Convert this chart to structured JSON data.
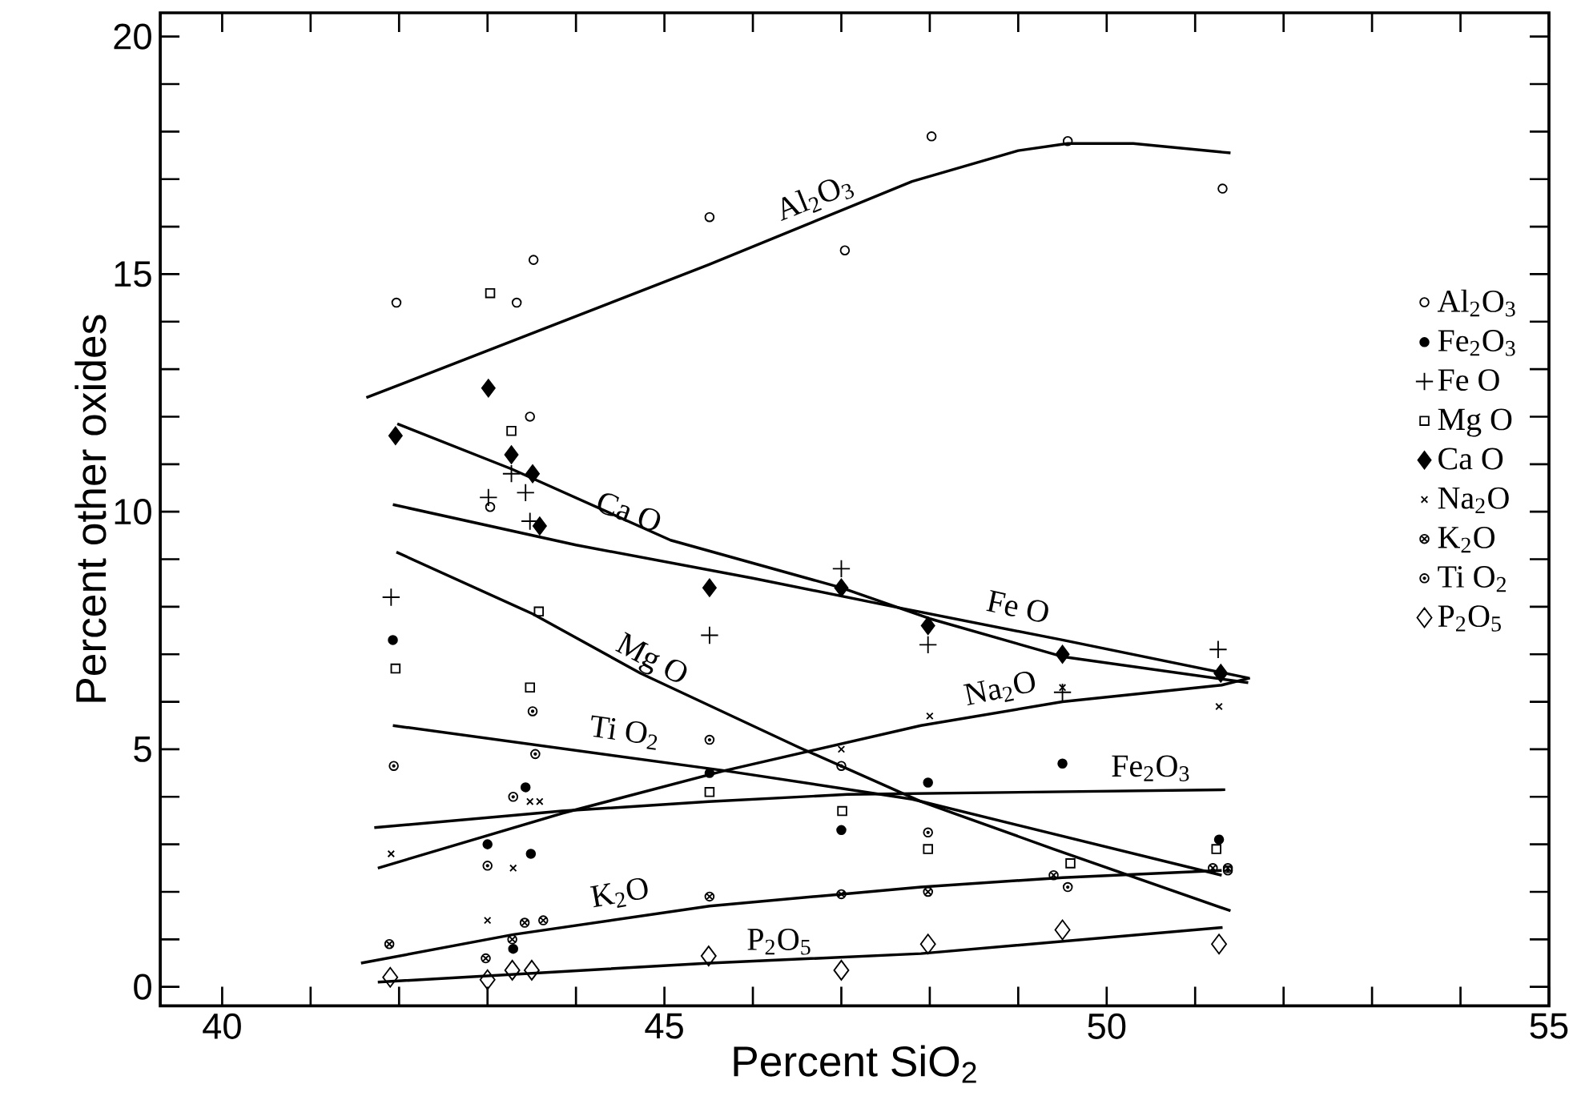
{
  "chart_data": {
    "type": "scatter",
    "xlabel": "Percent SiO$_{2}$",
    "ylabel": "Percent other oxides",
    "xlim": [
      39.3,
      55
    ],
    "ylim": [
      -0.4,
      20.5
    ],
    "xticks": [
      40,
      {
        "value": 41,
        "label": null
      },
      {
        "value": 42,
        "label": null
      },
      {
        "value": 43,
        "label": null
      },
      {
        "value": 44,
        "label": null
      },
      45,
      {
        "value": 46,
        "label": null
      },
      {
        "value": 47,
        "label": null
      },
      {
        "value": 48,
        "label": null
      },
      {
        "value": 49,
        "label": null
      },
      50,
      {
        "value": 51,
        "label": null
      },
      {
        "value": 52,
        "label": null
      },
      {
        "value": 53,
        "label": null
      },
      {
        "value": 54,
        "label": null
      },
      55
    ],
    "yticks": [
      0,
      {
        "value": 1,
        "label": null
      },
      {
        "value": 2,
        "label": null
      },
      {
        "value": 3,
        "label": null
      },
      {
        "value": 4,
        "label": null
      },
      5,
      {
        "value": 6,
        "label": null
      },
      {
        "value": 7,
        "label": null
      },
      {
        "value": 8,
        "label": null
      },
      {
        "value": 9,
        "label": null
      },
      10,
      {
        "value": 11,
        "label": null
      },
      {
        "value": 12,
        "label": null
      },
      {
        "value": 13,
        "label": null
      },
      {
        "value": 14,
        "label": null
      },
      15,
      {
        "value": 16,
        "label": null
      },
      {
        "value": 17,
        "label": null
      },
      {
        "value": 18,
        "label": null
      },
      {
        "value": 19,
        "label": null
      },
      20
    ],
    "legend": "right",
    "series": [
      {
        "name": "Al$_{2}$O$_{3}$",
        "marker": "circle",
        "color": "#000000",
        "x": [
          41.97,
          43.03,
          43.33,
          43.48,
          43.52,
          45.51,
          47.04,
          48.02,
          49.56,
          51.31
        ],
        "values": [
          14.4,
          10.1,
          14.4,
          12.0,
          15.3,
          16.2,
          15.5,
          17.9,
          17.8,
          16.8
        ]
      },
      {
        "name": "Fe$_{2}$O$_{3}$",
        "marker": "circle",
        "color": "#000000",
        "x": [
          41.93,
          43.0,
          43.29,
          43.43,
          43.49,
          45.51,
          47.0,
          47.98,
          49.5,
          51.27
        ],
        "values": [
          7.3,
          3.0,
          0.8,
          4.2,
          2.8,
          4.5,
          3.3,
          4.3,
          4.7,
          3.1
        ]
      },
      {
        "name": "Fe O",
        "marker": "cross",
        "color": "#000000",
        "x": [
          41.91,
          43.01,
          43.27,
          43.43,
          43.48,
          45.51,
          47.0,
          47.98,
          49.5,
          51.26
        ],
        "values": [
          8.2,
          10.3,
          10.8,
          10.4,
          9.8,
          7.4,
          8.8,
          7.2,
          6.2,
          7.1
        ]
      },
      {
        "name": "Mg O",
        "marker": "square",
        "color": "#000000",
        "x": [
          41.96,
          43.03,
          43.27,
          43.48,
          43.58,
          45.51,
          47.01,
          47.98,
          49.59,
          51.24
        ],
        "values": [
          6.7,
          14.6,
          11.7,
          6.3,
          7.9,
          4.1,
          3.7,
          2.9,
          2.6,
          2.9
        ]
      },
      {
        "name": "Ca O",
        "marker": "diamond",
        "color": "#000000",
        "x": [
          41.96,
          43.01,
          43.27,
          43.51,
          43.59,
          45.51,
          47.0,
          47.98,
          49.5,
          51.29
        ],
        "values": [
          11.6,
          12.6,
          11.2,
          10.8,
          9.7,
          8.4,
          8.4,
          7.6,
          7.0,
          6.6
        ]
      },
      {
        "name": "Na$_{2}$O",
        "marker": "cross",
        "color": "#000000",
        "x": [
          41.91,
          43.0,
          43.29,
          43.48,
          43.59,
          47.0,
          48.0,
          49.5,
          51.27
        ],
        "values": [
          2.8,
          1.4,
          2.5,
          3.9,
          3.9,
          5.0,
          5.7,
          6.3,
          5.9
        ]
      },
      {
        "name": "K$_{2}$O",
        "marker": "cross",
        "color": "#000000",
        "x": [
          41.89,
          42.98,
          43.28,
          43.42,
          43.63,
          45.51,
          47.0,
          47.98,
          49.4,
          51.2,
          51.37
        ],
        "values": [
          0.9,
          0.6,
          1.0,
          1.35,
          1.4,
          1.9,
          1.95,
          2.0,
          2.35,
          2.5,
          2.5
        ]
      },
      {
        "name": "Ti O$_{2}$",
        "marker": "circle",
        "color": "#000000",
        "x": [
          41.94,
          43.0,
          43.29,
          43.51,
          43.54,
          45.51,
          47.0,
          47.98,
          49.56,
          51.37
        ],
        "values": [
          4.65,
          2.55,
          4.0,
          5.8,
          4.9,
          5.2,
          4.65,
          3.25,
          2.1,
          2.45
        ]
      },
      {
        "name": "P$_{2}$O$_{5}$",
        "marker": "diamond",
        "color": "#000000",
        "x": [
          41.9,
          43.0,
          43.28,
          43.5,
          45.5,
          47.0,
          47.98,
          49.5,
          51.27
        ],
        "values": [
          0.2,
          0.15,
          0.35,
          0.35,
          0.65,
          0.35,
          0.9,
          1.2,
          0.9
        ]
      },
      {
        "type": "line",
        "color": "#000000",
        "x": [
          41.63,
          45.5,
          47.8,
          49.0,
          49.56,
          50.3,
          51.4
        ],
        "values": [
          12.4,
          15.2,
          16.95,
          17.6,
          17.75,
          17.75,
          17.55
        ]
      },
      {
        "type": "line",
        "color": "#000000",
        "x": [
          41.72,
          43.84,
          45.5,
          47.07,
          51.34
        ],
        "values": [
          3.35,
          3.7,
          3.9,
          4.05,
          4.15
        ]
      },
      {
        "type": "line",
        "color": "#000000",
        "x": [
          41.93,
          44.0,
          46.0,
          47.73,
          49.5,
          51.6
        ],
        "values": [
          10.15,
          9.3,
          8.6,
          7.95,
          7.3,
          6.5
        ]
      },
      {
        "type": "line",
        "color": "#000000",
        "x": [
          41.97,
          43.51,
          44.73,
          46.51,
          47.9,
          49.4,
          51.4
        ],
        "values": [
          9.15,
          7.85,
          6.6,
          5.05,
          3.9,
          2.9,
          1.6
        ]
      },
      {
        "type": "line",
        "color": "#000000",
        "x": [
          41.98,
          43.27,
          45.07,
          47.0,
          48.0,
          49.5,
          51.6
        ],
        "values": [
          11.85,
          10.9,
          9.4,
          8.4,
          7.75,
          6.95,
          6.4
        ]
      },
      {
        "type": "line",
        "color": "#000000",
        "x": [
          41.76,
          43.84,
          45.68,
          47.9,
          49.5,
          51.3,
          51.62
        ],
        "values": [
          2.5,
          3.65,
          4.55,
          5.5,
          6.0,
          6.35,
          6.5
        ]
      },
      {
        "type": "line",
        "color": "#000000",
        "x": [
          41.57,
          43.29,
          45.51,
          47.0,
          47.9,
          49.5,
          51.3
        ],
        "values": [
          0.5,
          1.1,
          1.7,
          1.95,
          2.1,
          2.3,
          2.45
        ]
      },
      {
        "type": "line",
        "color": "#000000",
        "x": [
          41.93,
          45.68,
          47.8,
          51.3
        ],
        "values": [
          5.5,
          4.55,
          3.95,
          2.35
        ]
      },
      {
        "type": "line",
        "color": "#000000",
        "x": [
          41.76,
          45.51,
          47.9,
          51.31
        ],
        "values": [
          0.1,
          0.5,
          0.7,
          1.25
        ]
      }
    ],
    "annotations": [
      "Al$_{2}$O$_{3}$",
      "Ca O",
      "Fe O",
      "Mg O",
      "Ti O$_{2}$",
      "Na$_{2}$O",
      "Fe$_{2}$O$_{3}$",
      "K$_{2}$O",
      "P$_{2}$O$_{5}$"
    ]
  }
}
